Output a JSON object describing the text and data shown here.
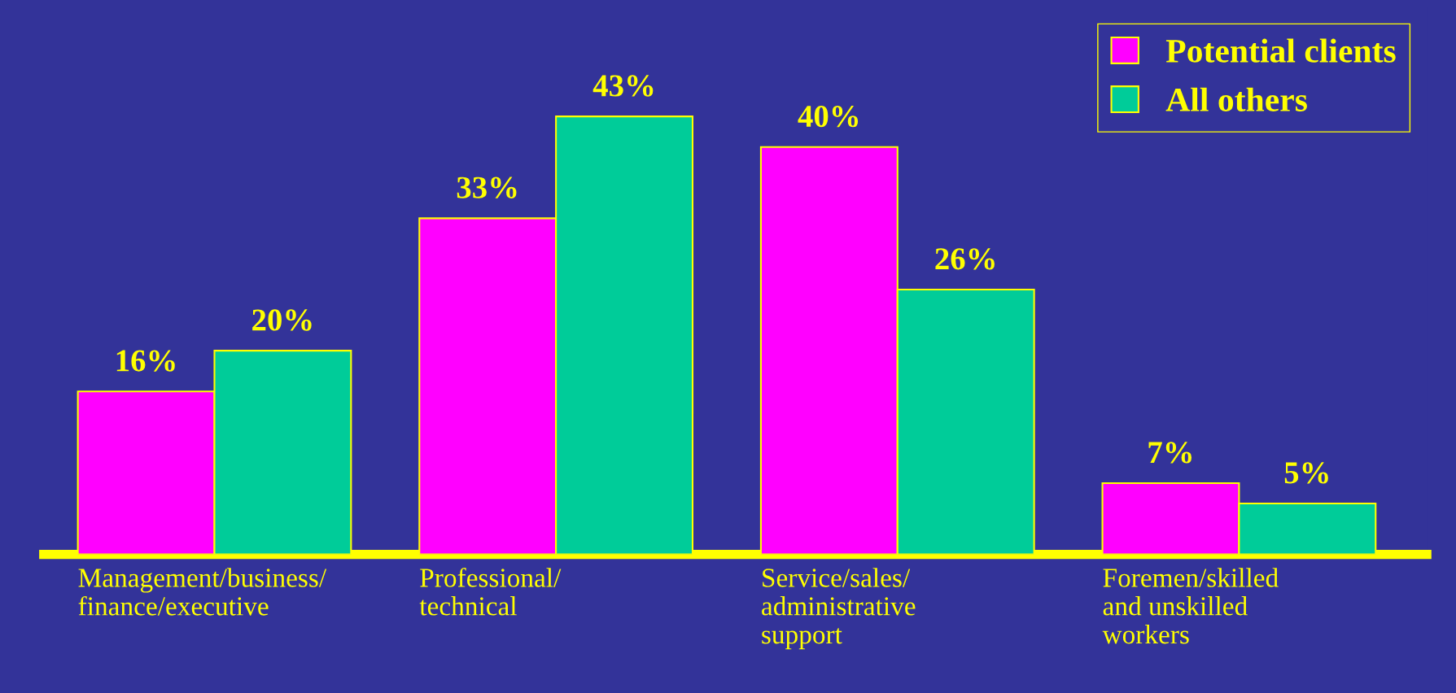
{
  "chart_data": {
    "type": "bar",
    "categories": [
      "Management/business/\nfinance/executive",
      "Professional/\ntechnical",
      "Service/sales/\nadministrative\nsupport",
      "Foremen/skilled\nand unskilled\nworkers"
    ],
    "series": [
      {
        "name": "Potential clients",
        "color": "#ff00ff",
        "values": [
          16,
          33,
          40,
          7
        ],
        "value_labels": [
          "16%",
          "33%",
          "40%",
          "7%"
        ]
      },
      {
        "name": "All others",
        "color": "#00cc99",
        "values": [
          20,
          43,
          26,
          5
        ],
        "value_labels": [
          "20%",
          "43%",
          "26%",
          "5%"
        ]
      }
    ],
    "legend": "top right",
    "grid": false
  }
}
